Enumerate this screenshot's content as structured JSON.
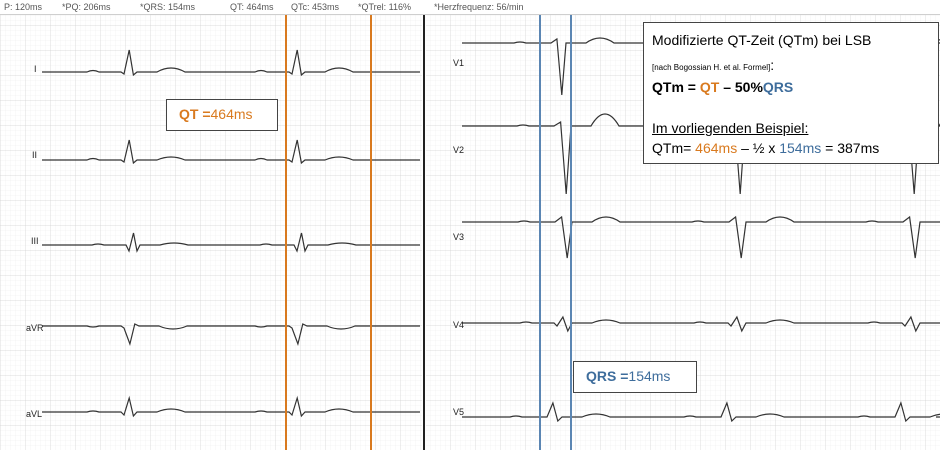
{
  "header": {
    "p": "P:  120ms",
    "pq": "*PQ:  206ms",
    "qrs": "*QRS:  154ms",
    "qt": "QT:  464ms",
    "qtc": "QTc:  453ms",
    "qtrel": "*QTrel:  116%",
    "hr": "*Herzfrequenz:  56/min"
  },
  "leads_left": [
    "I",
    "II",
    "III",
    "aVR",
    "aVL"
  ],
  "leads_right": [
    "V1",
    "V2",
    "V3",
    "V4",
    "V5"
  ],
  "qt_label": {
    "prefix": "QT =",
    "value": "464ms"
  },
  "qrs_label": {
    "prefix": "QRS =",
    "value": "154ms"
  },
  "info": {
    "title": "Modifizierte QT-Zeit (QTm) bei LSB",
    "source": "[nach Bogossian H. et al. Formel]",
    "source_colon": ":",
    "formula_lhs": "QTm = ",
    "formula_qt": "QT",
    "formula_mid": " – 50%",
    "formula_qrs": "QRS",
    "example_heading": "Im vorliegenden Beispiel:",
    "example_lhs": "QTm= ",
    "example_qt": "464ms",
    "example_mid": " – ½ x ",
    "example_qrs": "154ms",
    "example_result": " = 387ms"
  },
  "colors": {
    "qt": "#d97a1f",
    "qrs": "#3e6d9c",
    "grid_major": "#d3d3d3",
    "grid_minor": "#ececec",
    "trace": "#333333"
  }
}
